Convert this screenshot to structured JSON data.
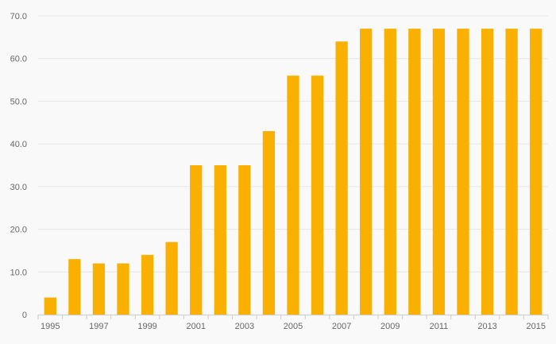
{
  "chart_data": {
    "type": "bar",
    "title": "",
    "xlabel": "",
    "ylabel": "",
    "categories": [
      "1995",
      "1996",
      "1997",
      "1998",
      "1999",
      "2000",
      "2001",
      "2002",
      "2003",
      "2004",
      "2005",
      "2006",
      "2007",
      "2008",
      "2009",
      "2010",
      "2011",
      "2012",
      "2013",
      "2014",
      "2015"
    ],
    "x_tick_labels": [
      "1995",
      "",
      "1997",
      "",
      "1999",
      "",
      "2001",
      "",
      "2003",
      "",
      "2005",
      "",
      "2007",
      "",
      "2009",
      "",
      "2011",
      "",
      "2013",
      "",
      "2015"
    ],
    "values": [
      4,
      13,
      12,
      12,
      14,
      17,
      35,
      35,
      35,
      43,
      56,
      56,
      64,
      67,
      67,
      67,
      67,
      67,
      67,
      67,
      67
    ],
    "ylim": [
      0,
      70
    ],
    "y_ticks": [
      0,
      10,
      20,
      30,
      40,
      50,
      60,
      70
    ],
    "y_tick_labels": [
      "0",
      "10.0",
      "20.0",
      "30.0",
      "40.0",
      "50.0",
      "60.0",
      "70.0"
    ],
    "grid": true,
    "legend": "none",
    "colors": {
      "bar": "#f9b000",
      "grid": "#e6e6e6",
      "axis": "#cccccc",
      "tick_text": "#666666",
      "background": "#f9f9f9"
    }
  }
}
